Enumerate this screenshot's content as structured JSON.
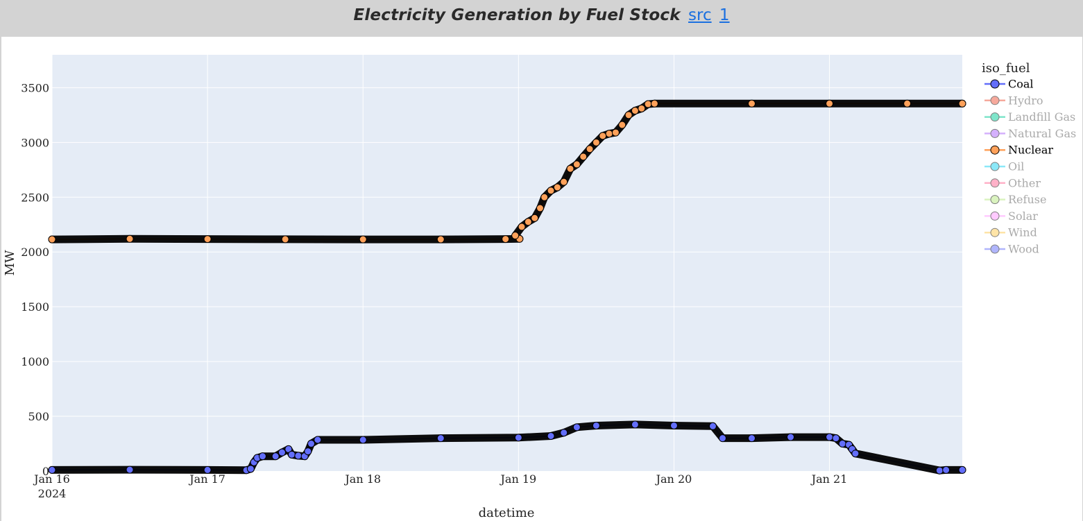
{
  "header": {
    "title": "Electricity Generation by Fuel Stock",
    "link_src": "src",
    "link_1": "1"
  },
  "chart_data": {
    "type": "line",
    "title": "",
    "xlabel": "datetime",
    "ylabel": "MW",
    "x_range": [
      "2024-01-16T00:00",
      "2024-01-21T20:30"
    ],
    "ylim": [
      0,
      3800
    ],
    "y_ticks": [
      0,
      500,
      1000,
      1500,
      2000,
      2500,
      3000,
      3500
    ],
    "x_ticks": [
      {
        "date": "2024-01-16",
        "label": "Jan 16",
        "sublabel": "2024"
      },
      {
        "date": "2024-01-17",
        "label": "Jan 17",
        "sublabel": ""
      },
      {
        "date": "2024-01-18",
        "label": "Jan 18",
        "sublabel": ""
      },
      {
        "date": "2024-01-19",
        "label": "Jan 19",
        "sublabel": ""
      },
      {
        "date": "2024-01-20",
        "label": "Jan 20",
        "sublabel": ""
      },
      {
        "date": "2024-01-21",
        "label": "Jan 21",
        "sublabel": ""
      }
    ],
    "grid": true,
    "legend_position": "right",
    "legend_title": "iso_fuel",
    "legend": [
      {
        "name": "Coal",
        "color": "#636efa",
        "visible": true
      },
      {
        "name": "Hydro",
        "color": "#EF553B",
        "visible": false
      },
      {
        "name": "Landfill Gas",
        "color": "#00cc96",
        "visible": false
      },
      {
        "name": "Natural Gas",
        "color": "#ab63fa",
        "visible": false
      },
      {
        "name": "Nuclear",
        "color": "#FFA15A",
        "visible": true
      },
      {
        "name": "Oil",
        "color": "#19d3f3",
        "visible": false
      },
      {
        "name": "Other",
        "color": "#FF6692",
        "visible": false
      },
      {
        "name": "Refuse",
        "color": "#B6E880",
        "visible": false
      },
      {
        "name": "Solar",
        "color": "#FF97FF",
        "visible": false
      },
      {
        "name": "Wind",
        "color": "#FECB52",
        "visible": false
      },
      {
        "name": "Wood",
        "color": "#636efa",
        "visible": false
      }
    ],
    "series": [
      {
        "name": "Nuclear",
        "color": "#FFA15A",
        "points": [
          [
            "2024-01-16T00:00",
            2115
          ],
          [
            "2024-01-16T12:00",
            2120
          ],
          [
            "2024-01-17T00:00",
            2118
          ],
          [
            "2024-01-17T12:00",
            2116
          ],
          [
            "2024-01-18T00:00",
            2115
          ],
          [
            "2024-01-18T12:00",
            2115
          ],
          [
            "2024-01-18T22:00",
            2118
          ],
          [
            "2024-01-19T00:10",
            2120
          ],
          [
            "2024-01-18T23:30",
            2150
          ],
          [
            "2024-01-19T00:30",
            2230
          ],
          [
            "2024-01-19T01:30",
            2275
          ],
          [
            "2024-01-19T02:30",
            2310
          ],
          [
            "2024-01-19T03:20",
            2400
          ],
          [
            "2024-01-19T04:00",
            2500
          ],
          [
            "2024-01-19T05:00",
            2560
          ],
          [
            "2024-01-19T06:00",
            2590
          ],
          [
            "2024-01-19T07:00",
            2640
          ],
          [
            "2024-01-19T08:00",
            2760
          ],
          [
            "2024-01-19T09:00",
            2800
          ],
          [
            "2024-01-19T10:00",
            2870
          ],
          [
            "2024-01-19T11:00",
            2940
          ],
          [
            "2024-01-19T12:00",
            3000
          ],
          [
            "2024-01-19T13:00",
            3060
          ],
          [
            "2024-01-19T14:00",
            3080
          ],
          [
            "2024-01-19T15:00",
            3090
          ],
          [
            "2024-01-19T16:00",
            3160
          ],
          [
            "2024-01-19T17:00",
            3250
          ],
          [
            "2024-01-19T18:00",
            3290
          ],
          [
            "2024-01-19T19:00",
            3310
          ],
          [
            "2024-01-19T20:00",
            3350
          ],
          [
            "2024-01-19T21:00",
            3355
          ],
          [
            "2024-01-20T12:00",
            3355
          ],
          [
            "2024-01-21T00:00",
            3355
          ],
          [
            "2024-01-21T12:00",
            3355
          ],
          [
            "2024-01-21T20:30",
            3355
          ]
        ]
      },
      {
        "name": "Coal",
        "color": "#636efa",
        "points": [
          [
            "2024-01-16T00:00",
            10
          ],
          [
            "2024-01-16T12:00",
            12
          ],
          [
            "2024-01-17T00:00",
            10
          ],
          [
            "2024-01-17T06:00",
            8
          ],
          [
            "2024-01-17T06:40",
            20
          ],
          [
            "2024-01-17T07:10",
            80
          ],
          [
            "2024-01-17T07:40",
            120
          ],
          [
            "2024-01-17T08:30",
            135
          ],
          [
            "2024-01-17T10:30",
            135
          ],
          [
            "2024-01-17T11:30",
            170
          ],
          [
            "2024-01-17T12:30",
            200
          ],
          [
            "2024-01-17T13:00",
            150
          ],
          [
            "2024-01-17T14:00",
            140
          ],
          [
            "2024-01-17T15:00",
            135
          ],
          [
            "2024-01-17T15:30",
            180
          ],
          [
            "2024-01-17T16:00",
            250
          ],
          [
            "2024-01-17T17:00",
            285
          ],
          [
            "2024-01-18T00:00",
            285
          ],
          [
            "2024-01-18T12:00",
            300
          ],
          [
            "2024-01-19T00:00",
            305
          ],
          [
            "2024-01-19T05:00",
            320
          ],
          [
            "2024-01-19T07:00",
            350
          ],
          [
            "2024-01-19T09:00",
            400
          ],
          [
            "2024-01-19T12:00",
            415
          ],
          [
            "2024-01-19T18:00",
            425
          ],
          [
            "2024-01-20T00:00",
            415
          ],
          [
            "2024-01-20T06:00",
            410
          ],
          [
            "2024-01-20T07:30",
            300
          ],
          [
            "2024-01-20T12:00",
            300
          ],
          [
            "2024-01-20T18:00",
            310
          ],
          [
            "2024-01-21T00:00",
            310
          ],
          [
            "2024-01-21T01:00",
            300
          ],
          [
            "2024-01-21T02:00",
            250
          ],
          [
            "2024-01-21T03:00",
            240
          ],
          [
            "2024-01-21T03:30",
            200
          ],
          [
            "2024-01-21T04:00",
            160
          ],
          [
            "2024-01-21T17:00",
            5
          ],
          [
            "2024-01-21T18:00",
            10
          ],
          [
            "2024-01-21T20:30",
            10
          ]
        ]
      }
    ]
  }
}
